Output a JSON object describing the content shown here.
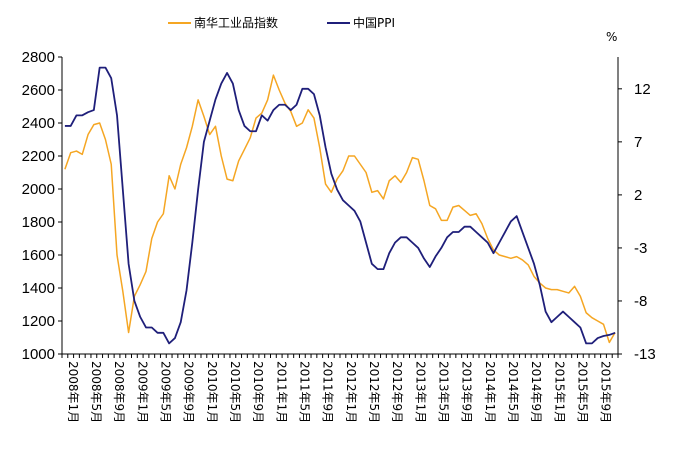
{
  "chart_data": {
    "type": "line",
    "title": "",
    "y_unit_right": "%",
    "ylim_left": [
      1000,
      2800
    ],
    "ylim_right": [
      -13,
      15
    ],
    "yticks_left": [
      "2800",
      "2600",
      "2400",
      "2200",
      "2000",
      "1800",
      "1600",
      "1400",
      "1200",
      "1000"
    ],
    "yticks_right": [
      "12",
      "7",
      "2",
      "-3",
      "-8",
      "-13"
    ],
    "x_tick_labels": [
      "2008年1月",
      "2008年5月",
      "2008年9月",
      "2009年1月",
      "2009年5月",
      "2009年9月",
      "2010年1月",
      "2010年5月",
      "2010年9月",
      "2011年1月",
      "2011年5月",
      "2011年9月",
      "2012年1月",
      "2012年5月",
      "2012年9月",
      "2013年1月",
      "2013年5月",
      "2013年9月",
      "2014年1月",
      "2014年5月",
      "2014年9月",
      "2015年1月",
      "2015年5月",
      "2015年9月"
    ],
    "grid": false,
    "legend_position": "top",
    "series": [
      {
        "name": "南华工业品指数",
        "axis": "left",
        "color": "#F5A623",
        "points": [
          [
            "2008-01",
            2120
          ],
          [
            "2008-02",
            2220
          ],
          [
            "2008-03",
            2230
          ],
          [
            "2008-04",
            2210
          ],
          [
            "2008-05",
            2330
          ],
          [
            "2008-06",
            2390
          ],
          [
            "2008-07",
            2400
          ],
          [
            "2008-08",
            2300
          ],
          [
            "2008-09",
            2150
          ],
          [
            "2008-10",
            1600
          ],
          [
            "2008-11",
            1380
          ],
          [
            "2008-12",
            1130
          ],
          [
            "2009-01",
            1350
          ],
          [
            "2009-02",
            1420
          ],
          [
            "2009-03",
            1500
          ],
          [
            "2009-04",
            1700
          ],
          [
            "2009-05",
            1800
          ],
          [
            "2009-06",
            1850
          ],
          [
            "2009-07",
            2080
          ],
          [
            "2009-08",
            2000
          ],
          [
            "2009-09",
            2150
          ],
          [
            "2009-10",
            2250
          ],
          [
            "2009-11",
            2380
          ],
          [
            "2009-12",
            2540
          ],
          [
            "2010-01",
            2440
          ],
          [
            "2010-02",
            2330
          ],
          [
            "2010-03",
            2380
          ],
          [
            "2010-04",
            2200
          ],
          [
            "2010-05",
            2060
          ],
          [
            "2010-06",
            2050
          ],
          [
            "2010-07",
            2170
          ],
          [
            "2010-08",
            2240
          ],
          [
            "2010-09",
            2310
          ],
          [
            "2010-10",
            2430
          ],
          [
            "2010-11",
            2460
          ],
          [
            "2010-12",
            2540
          ],
          [
            "2011-01",
            2690
          ],
          [
            "2011-02",
            2600
          ],
          [
            "2011-03",
            2520
          ],
          [
            "2011-04",
            2470
          ],
          [
            "2011-05",
            2380
          ],
          [
            "2011-06",
            2400
          ],
          [
            "2011-07",
            2480
          ],
          [
            "2011-08",
            2430
          ],
          [
            "2011-09",
            2250
          ],
          [
            "2011-10",
            2030
          ],
          [
            "2011-11",
            1980
          ],
          [
            "2011-12",
            2060
          ],
          [
            "2012-01",
            2110
          ],
          [
            "2012-02",
            2200
          ],
          [
            "2012-03",
            2200
          ],
          [
            "2012-04",
            2150
          ],
          [
            "2012-05",
            2100
          ],
          [
            "2012-06",
            1980
          ],
          [
            "2012-07",
            1990
          ],
          [
            "2012-08",
            1940
          ],
          [
            "2012-09",
            2050
          ],
          [
            "2012-10",
            2080
          ],
          [
            "2012-11",
            2040
          ],
          [
            "2012-12",
            2100
          ],
          [
            "2013-01",
            2190
          ],
          [
            "2013-02",
            2180
          ],
          [
            "2013-03",
            2050
          ],
          [
            "2013-04",
            1900
          ],
          [
            "2013-05",
            1880
          ],
          [
            "2013-06",
            1810
          ],
          [
            "2013-07",
            1810
          ],
          [
            "2013-08",
            1890
          ],
          [
            "2013-09",
            1900
          ],
          [
            "2013-10",
            1870
          ],
          [
            "2013-11",
            1840
          ],
          [
            "2013-12",
            1850
          ],
          [
            "2014-01",
            1790
          ],
          [
            "2014-02",
            1700
          ],
          [
            "2014-03",
            1630
          ],
          [
            "2014-04",
            1600
          ],
          [
            "2014-05",
            1590
          ],
          [
            "2014-06",
            1580
          ],
          [
            "2014-07",
            1590
          ],
          [
            "2014-08",
            1570
          ],
          [
            "2014-09",
            1540
          ],
          [
            "2014-10",
            1470
          ],
          [
            "2014-11",
            1430
          ],
          [
            "2014-12",
            1400
          ],
          [
            "2015-01",
            1390
          ],
          [
            "2015-02",
            1390
          ],
          [
            "2015-03",
            1380
          ],
          [
            "2015-04",
            1370
          ],
          [
            "2015-05",
            1410
          ],
          [
            "2015-06",
            1350
          ],
          [
            "2015-07",
            1250
          ],
          [
            "2015-08",
            1220
          ],
          [
            "2015-09",
            1200
          ],
          [
            "2015-10",
            1180
          ],
          [
            "2015-11",
            1070
          ],
          [
            "2015-12",
            1130
          ]
        ]
      },
      {
        "name": "中国PPI",
        "axis": "right",
        "color": "#1F1F7A",
        "points": [
          [
            "2008-01",
            8.5
          ],
          [
            "2008-02",
            8.5
          ],
          [
            "2008-03",
            9.5
          ],
          [
            "2008-04",
            9.5
          ],
          [
            "2008-05",
            9.8
          ],
          [
            "2008-06",
            10.0
          ],
          [
            "2008-07",
            14.0
          ],
          [
            "2008-08",
            14.0
          ],
          [
            "2008-09",
            13.0
          ],
          [
            "2008-10",
            9.5
          ],
          [
            "2008-11",
            2.5
          ],
          [
            "2008-12",
            -4.5
          ],
          [
            "2009-01",
            -8.0
          ],
          [
            "2009-02",
            -9.5
          ],
          [
            "2009-03",
            -10.5
          ],
          [
            "2009-04",
            -10.5
          ],
          [
            "2009-05",
            -11.0
          ],
          [
            "2009-06",
            -11.0
          ],
          [
            "2009-07",
            -12.0
          ],
          [
            "2009-08",
            -11.5
          ],
          [
            "2009-09",
            -10.0
          ],
          [
            "2009-10",
            -7.0
          ],
          [
            "2009-11",
            -2.5
          ],
          [
            "2009-12",
            2.5
          ],
          [
            "2010-01",
            7.0
          ],
          [
            "2010-02",
            9.0
          ],
          [
            "2010-03",
            11.0
          ],
          [
            "2010-04",
            12.5
          ],
          [
            "2010-05",
            13.5
          ],
          [
            "2010-06",
            12.5
          ],
          [
            "2010-07",
            10.0
          ],
          [
            "2010-08",
            8.5
          ],
          [
            "2010-09",
            8.0
          ],
          [
            "2010-10",
            8.0
          ],
          [
            "2010-11",
            9.5
          ],
          [
            "2010-12",
            9.0
          ],
          [
            "2011-01",
            10.0
          ],
          [
            "2011-02",
            10.5
          ],
          [
            "2011-03",
            10.5
          ],
          [
            "2011-04",
            10.0
          ],
          [
            "2011-05",
            10.5
          ],
          [
            "2011-06",
            12.0
          ],
          [
            "2011-07",
            12.0
          ],
          [
            "2011-08",
            11.5
          ],
          [
            "2011-09",
            9.5
          ],
          [
            "2011-10",
            6.5
          ],
          [
            "2011-11",
            4.0
          ],
          [
            "2011-12",
            2.5
          ],
          [
            "2012-01",
            1.5
          ],
          [
            "2012-02",
            1.0
          ],
          [
            "2012-03",
            0.5
          ],
          [
            "2012-04",
            -0.5
          ],
          [
            "2012-05",
            -2.5
          ],
          [
            "2012-06",
            -4.5
          ],
          [
            "2012-07",
            -5.0
          ],
          [
            "2012-08",
            -5.0
          ],
          [
            "2012-09",
            -3.5
          ],
          [
            "2012-10",
            -2.5
          ],
          [
            "2012-11",
            -2.0
          ],
          [
            "2012-12",
            -2.0
          ],
          [
            "2013-01",
            -2.5
          ],
          [
            "2013-02",
            -3.0
          ],
          [
            "2013-03",
            -4.0
          ],
          [
            "2013-04",
            -4.8
          ],
          [
            "2013-05",
            -3.8
          ],
          [
            "2013-06",
            -3.0
          ],
          [
            "2013-07",
            -2.0
          ],
          [
            "2013-08",
            -1.5
          ],
          [
            "2013-09",
            -1.5
          ],
          [
            "2013-10",
            -1.0
          ],
          [
            "2013-11",
            -1.0
          ],
          [
            "2013-12",
            -1.5
          ],
          [
            "2014-01",
            -2.0
          ],
          [
            "2014-02",
            -2.5
          ],
          [
            "2014-03",
            -3.5
          ],
          [
            "2014-04",
            -2.5
          ],
          [
            "2014-05",
            -1.5
          ],
          [
            "2014-06",
            -0.5
          ],
          [
            "2014-07",
            0.0
          ],
          [
            "2014-08",
            -1.5
          ],
          [
            "2014-09",
            -3.0
          ],
          [
            "2014-10",
            -4.5
          ],
          [
            "2014-11",
            -6.5
          ],
          [
            "2014-12",
            -9.0
          ],
          [
            "2015-01",
            -10.0
          ],
          [
            "2015-02",
            -9.5
          ],
          [
            "2015-03",
            -9.0
          ],
          [
            "2015-04",
            -9.5
          ],
          [
            "2015-05",
            -10.0
          ],
          [
            "2015-06",
            -10.5
          ],
          [
            "2015-07",
            -12.0
          ],
          [
            "2015-08",
            -12.0
          ],
          [
            "2015-09",
            -11.5
          ],
          [
            "2015-10",
            -11.3
          ],
          [
            "2015-11",
            -11.2
          ],
          [
            "2015-12",
            -11.0
          ]
        ]
      }
    ]
  }
}
